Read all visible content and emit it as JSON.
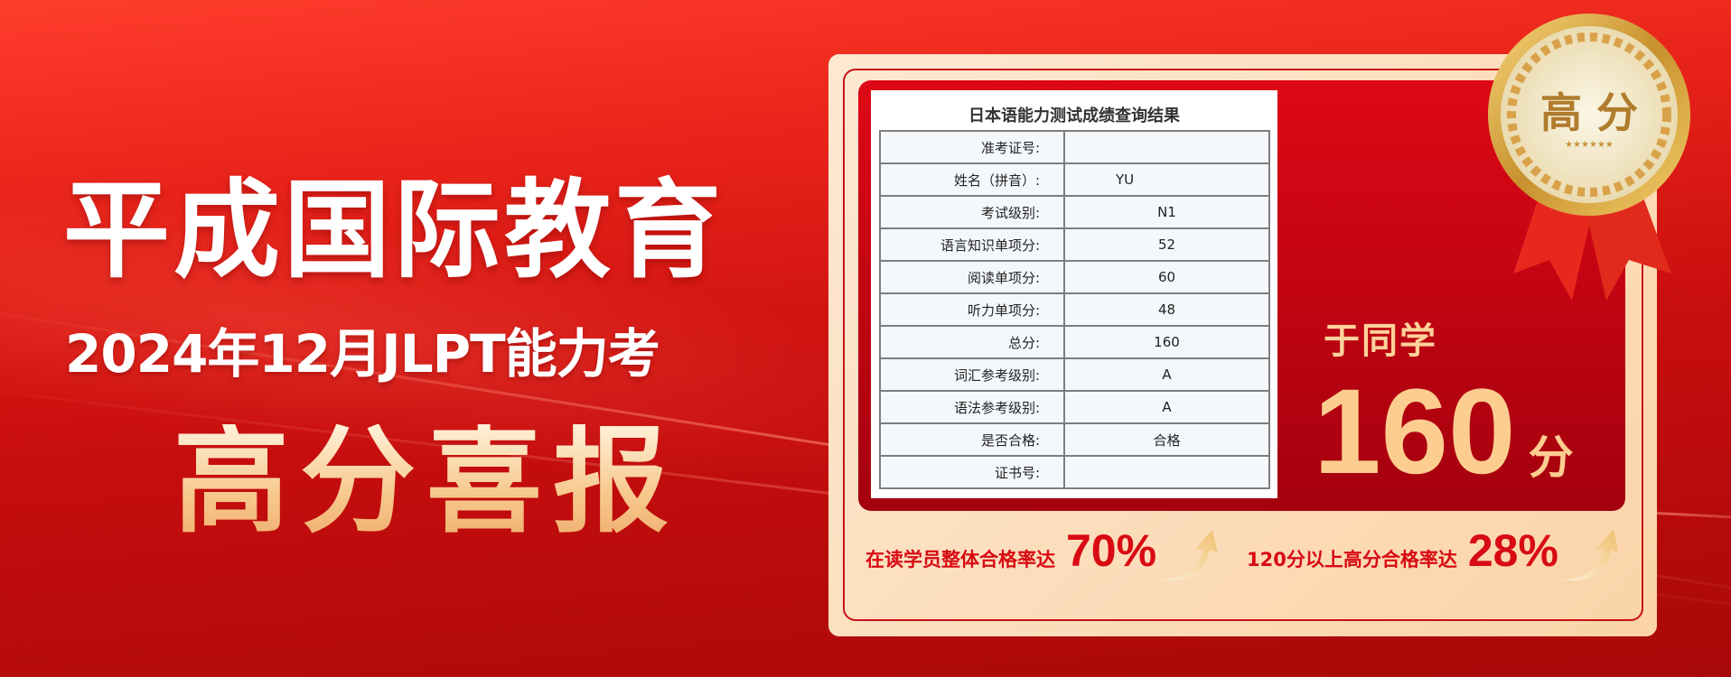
{
  "banner": {
    "org_name": "平成国际教育",
    "subtitle": "2024年12月JLPT能力考",
    "headline": "高分喜报"
  },
  "medal": {
    "text": "高 分",
    "stars": "★★★★★★"
  },
  "result_sheet": {
    "title": "日本语能力测试成绩查询结果",
    "rows": [
      {
        "label": "准考证号:",
        "value": ""
      },
      {
        "label": "姓名（拼音）:",
        "value": "YU"
      },
      {
        "label": "考试级别:",
        "value": "N1"
      },
      {
        "label": "语言知识单项分:",
        "value": "52"
      },
      {
        "label": "阅读单项分:",
        "value": "60"
      },
      {
        "label": "听力单项分:",
        "value": "48"
      },
      {
        "label": "总分:",
        "value": "160"
      },
      {
        "label": "词汇参考级别:",
        "value": "A"
      },
      {
        "label": "语法参考级别:",
        "value": "A"
      },
      {
        "label": "是否合格:",
        "value": "合格"
      },
      {
        "label": "证书号:",
        "value": ""
      }
    ]
  },
  "student": {
    "name": "于同学",
    "score": "160",
    "unit": "分"
  },
  "stats": [
    {
      "label": "在读学员整体合格率达",
      "value": "70%",
      "icon": "arrow-up-icon"
    },
    {
      "label": "120分以上高分合格率达",
      "value": "28%",
      "icon": "arrow-up-icon"
    }
  ],
  "colors": {
    "accent_red": "#d80a12",
    "gold": "#fdcd90",
    "card_bg": "#fde8d2"
  }
}
